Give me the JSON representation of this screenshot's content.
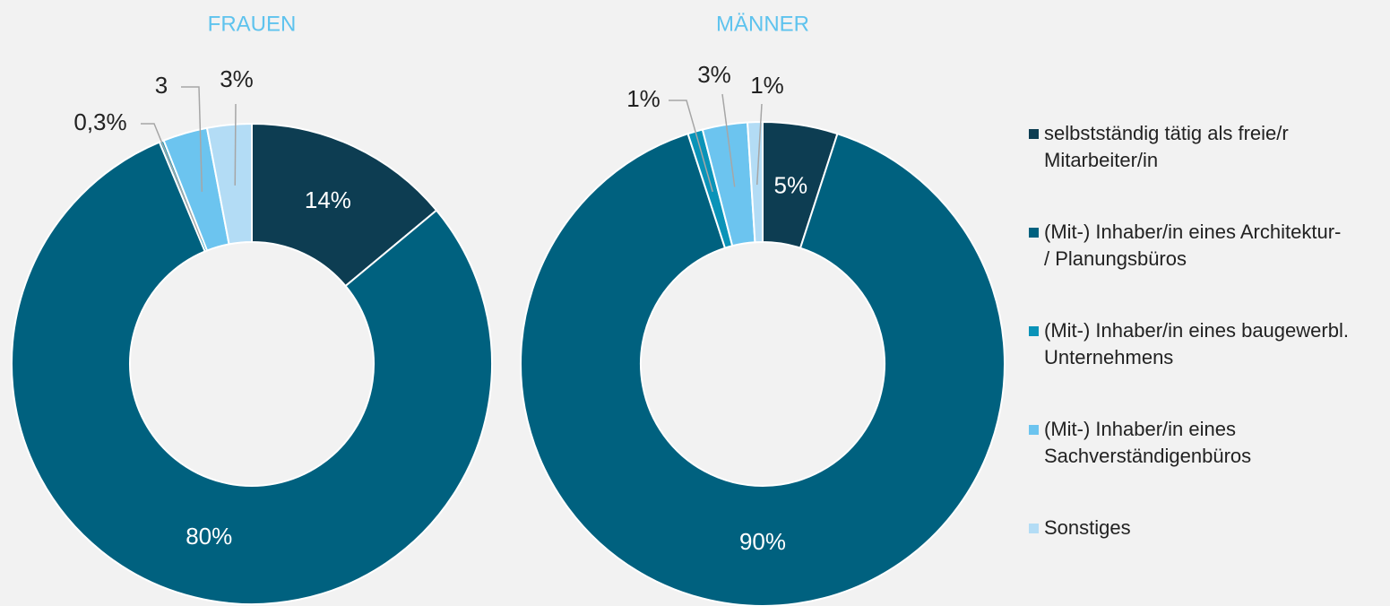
{
  "chart_data": [
    {
      "type": "pie",
      "title": "FRAUEN",
      "categories": [
        "selbstständig tätig als freie/r Mitarbeiter/in",
        "(Mit-) Inhaber/in eines Architektur- / Planungsbüros",
        "(Mit-) Inhaber/in eines baugewerbl. Unternehmens",
        "(Mit-) Inhaber/in eines Sachverständigenbüros",
        "Sonstiges"
      ],
      "values": [
        14,
        80,
        0.3,
        3,
        3
      ],
      "value_labels": [
        "14%",
        "80%",
        "0,3%",
        "3",
        "3%"
      ],
      "colors": [
        "#0d3d52",
        "#00617f",
        "#0a93b8",
        "#6cc4ef",
        "#b3dcf5"
      ]
    },
    {
      "type": "pie",
      "title": "MÄNNER",
      "values": [
        5,
        90,
        1,
        3,
        1
      ],
      "value_labels": [
        "5%",
        "90%",
        "1%",
        "3%",
        "1%"
      ],
      "colors": [
        "#0d3d52",
        "#00617f",
        "#0a93b8",
        "#6cc4ef",
        "#b3dcf5"
      ]
    }
  ]
}
